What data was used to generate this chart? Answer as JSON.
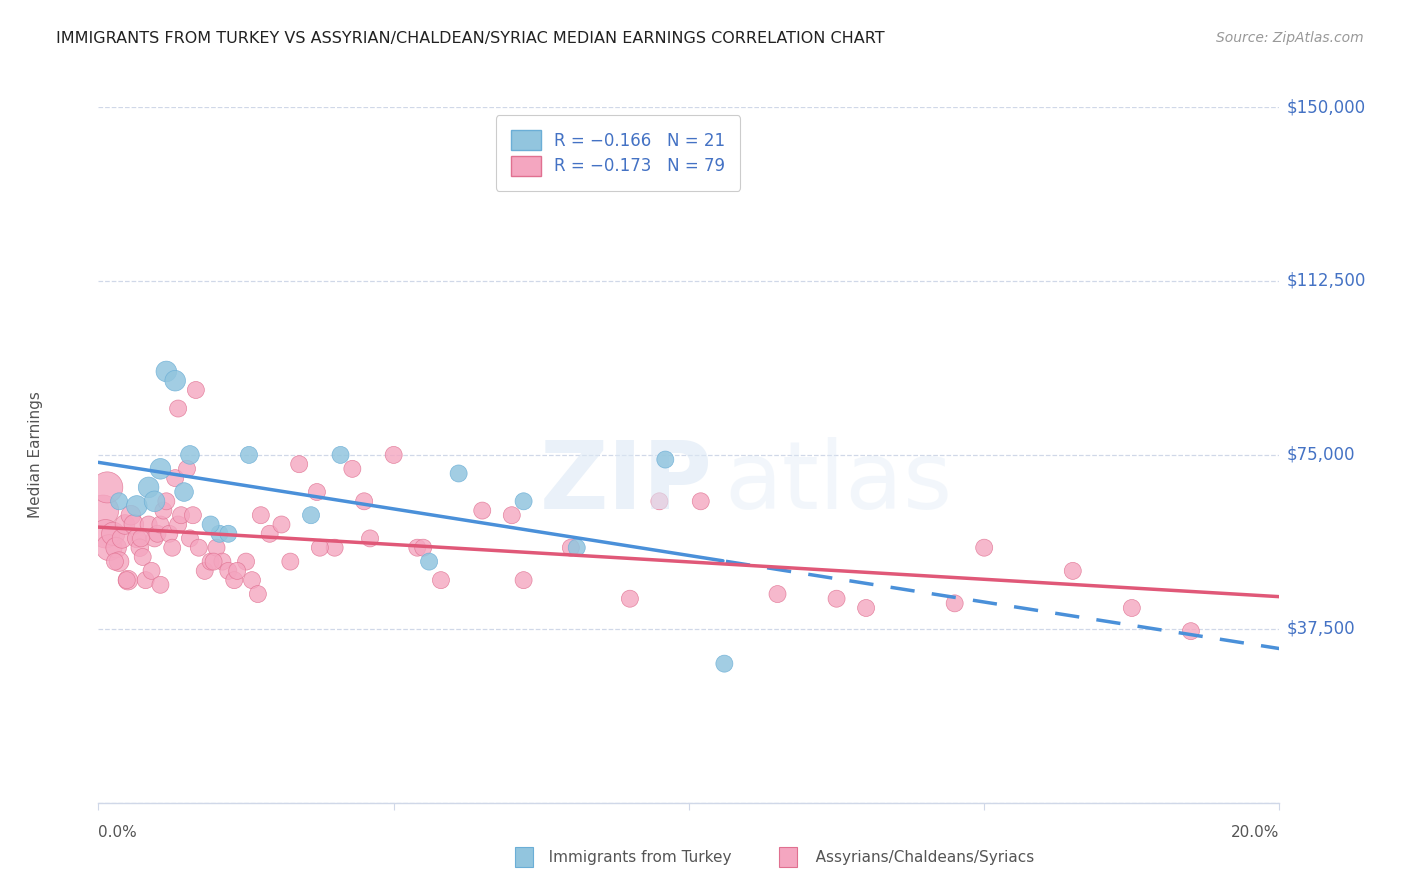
{
  "title": "IMMIGRANTS FROM TURKEY VS ASSYRIAN/CHALDEAN/SYRIAC MEDIAN EARNINGS CORRELATION CHART",
  "source": "Source: ZipAtlas.com",
  "ylabel": "Median Earnings",
  "yticks": [
    0,
    37500,
    75000,
    112500,
    150000
  ],
  "ytick_labels": [
    "",
    "$37,500",
    "$75,000",
    "$112,500",
    "$150,000"
  ],
  "xmin": 0.0,
  "xmax": 20.0,
  "ymin": 0,
  "ymax": 150000,
  "blue_color": "#92c5de",
  "blue_edge_color": "#6baed6",
  "pink_color": "#f4a6c0",
  "pink_edge_color": "#e07090",
  "blue_line_color": "#4a90d9",
  "pink_line_color": "#e05878",
  "legend_label_blue": "R = −0.166   N = 21",
  "legend_label_pink": "R = −0.173   N = 79",
  "yaxis_color": "#4472c4",
  "grid_color": "#d0d8e8",
  "bottom_label_blue": "Immigrants from Turkey",
  "bottom_label_pink": "Assyrians/Chaldeans/Syriacs",
  "blue_scatter_x": [
    0.35,
    0.65,
    0.85,
    0.95,
    1.05,
    1.15,
    1.45,
    2.05,
    2.55,
    3.6,
    4.1,
    5.6,
    6.1,
    7.2,
    8.1,
    9.6,
    10.6,
    1.3,
    1.55,
    1.9,
    2.2
  ],
  "blue_scatter_y": [
    65000,
    64000,
    68000,
    65000,
    72000,
    93000,
    67000,
    58000,
    75000,
    62000,
    75000,
    52000,
    71000,
    65000,
    55000,
    74000,
    30000,
    91000,
    75000,
    60000,
    58000
  ],
  "blue_scatter_size": [
    150,
    220,
    220,
    220,
    220,
    220,
    180,
    150,
    150,
    150,
    150,
    150,
    150,
    150,
    150,
    150,
    150,
    220,
    180,
    150,
    150
  ],
  "pink_scatter_x": [
    0.08,
    0.12,
    0.18,
    0.25,
    0.3,
    0.35,
    0.4,
    0.45,
    0.5,
    0.55,
    0.6,
    0.65,
    0.7,
    0.75,
    0.8,
    0.85,
    0.9,
    0.95,
    1.0,
    1.05,
    1.1,
    1.15,
    1.2,
    1.25,
    1.3,
    1.35,
    1.4,
    1.5,
    1.55,
    1.6,
    1.7,
    1.8,
    1.9,
    2.0,
    2.1,
    2.2,
    2.3,
    2.5,
    2.6,
    2.7,
    2.9,
    3.1,
    3.4,
    3.7,
    4.0,
    4.3,
    4.6,
    5.0,
    5.4,
    5.8,
    6.5,
    7.2,
    8.0,
    9.0,
    10.2,
    11.5,
    13.0,
    14.5,
    16.5,
    18.5,
    0.28,
    0.48,
    0.72,
    1.05,
    1.35,
    1.65,
    1.95,
    2.35,
    2.75,
    3.25,
    3.75,
    4.5,
    5.5,
    7.0,
    9.5,
    12.5,
    15.0,
    17.5,
    0.15
  ],
  "pink_scatter_y": [
    63000,
    58000,
    55000,
    58000,
    55000,
    52000,
    57000,
    60000,
    48000,
    62000,
    60000,
    57000,
    55000,
    53000,
    48000,
    60000,
    50000,
    57000,
    58000,
    60000,
    63000,
    65000,
    58000,
    55000,
    70000,
    60000,
    62000,
    72000,
    57000,
    62000,
    55000,
    50000,
    52000,
    55000,
    52000,
    50000,
    48000,
    52000,
    48000,
    45000,
    58000,
    60000,
    73000,
    67000,
    55000,
    72000,
    57000,
    75000,
    55000,
    48000,
    63000,
    48000,
    55000,
    44000,
    65000,
    45000,
    42000,
    43000,
    50000,
    37000,
    52000,
    48000,
    57000,
    47000,
    85000,
    89000,
    52000,
    50000,
    62000,
    52000,
    55000,
    65000,
    55000,
    62000,
    65000,
    44000,
    55000,
    42000,
    68000
  ],
  "pink_scatter_size": [
    500,
    420,
    350,
    280,
    220,
    200,
    200,
    200,
    200,
    200,
    200,
    180,
    160,
    150,
    150,
    150,
    150,
    150,
    150,
    150,
    150,
    150,
    150,
    150,
    150,
    150,
    150,
    150,
    150,
    150,
    150,
    150,
    150,
    150,
    150,
    150,
    150,
    150,
    150,
    150,
    150,
    150,
    150,
    150,
    150,
    150,
    150,
    150,
    150,
    150,
    150,
    150,
    150,
    150,
    150,
    150,
    150,
    150,
    150,
    150,
    150,
    150,
    150,
    150,
    150,
    150,
    150,
    150,
    150,
    150,
    150,
    150,
    150,
    150,
    150,
    150,
    150,
    150,
    500
  ]
}
